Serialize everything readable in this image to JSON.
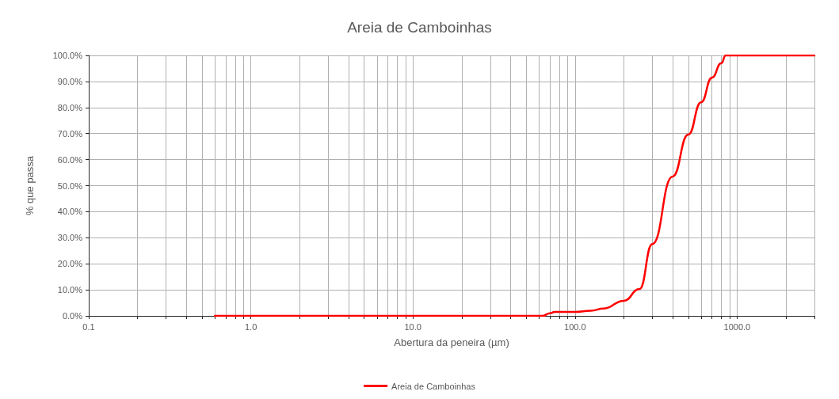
{
  "chart_data": {
    "type": "line",
    "title": "Areia de Camboinhas",
    "xlabel": "Abertura da peneira (µm)",
    "ylabel": "% que passa",
    "log": "x",
    "grid": true,
    "legend": "bottom",
    "marker": "none",
    "line_style": "solid",
    "xlim": [
      0.1,
      3000
    ],
    "ylim": [
      0,
      100
    ],
    "xticks": [
      {
        "value": 0.1,
        "label": "0.1"
      },
      {
        "value": 0.2,
        "label": null
      },
      {
        "value": 0.3,
        "label": null
      },
      {
        "value": 0.4,
        "label": null
      },
      {
        "value": 0.5,
        "label": null
      },
      {
        "value": 0.6,
        "label": null
      },
      {
        "value": 0.7,
        "label": null
      },
      {
        "value": 0.8,
        "label": null
      },
      {
        "value": 0.9,
        "label": null
      },
      {
        "value": 1,
        "label": "1.0"
      },
      {
        "value": 2,
        "label": null
      },
      {
        "value": 3,
        "label": null
      },
      {
        "value": 4,
        "label": null
      },
      {
        "value": 5,
        "label": null
      },
      {
        "value": 6,
        "label": null
      },
      {
        "value": 7,
        "label": null
      },
      {
        "value": 8,
        "label": null
      },
      {
        "value": 9,
        "label": null
      },
      {
        "value": 10,
        "label": "10.0"
      },
      {
        "value": 20,
        "label": null
      },
      {
        "value": 30,
        "label": null
      },
      {
        "value": 40,
        "label": null
      },
      {
        "value": 50,
        "label": null
      },
      {
        "value": 60,
        "label": null
      },
      {
        "value": 70,
        "label": null
      },
      {
        "value": 80,
        "label": null
      },
      {
        "value": 90,
        "label": null
      },
      {
        "value": 100,
        "label": "100.0"
      },
      {
        "value": 200,
        "label": null
      },
      {
        "value": 300,
        "label": null
      },
      {
        "value": 400,
        "label": null
      },
      {
        "value": 500,
        "label": null
      },
      {
        "value": 600,
        "label": null
      },
      {
        "value": 700,
        "label": null
      },
      {
        "value": 800,
        "label": null
      },
      {
        "value": 900,
        "label": null
      },
      {
        "value": 1000,
        "label": "1000.0"
      },
      {
        "value": 2000,
        "label": null
      },
      {
        "value": 3000,
        "label": null
      }
    ],
    "yticks": [
      {
        "value": 0,
        "label": "0.0%"
      },
      {
        "value": 10,
        "label": "10.0%"
      },
      {
        "value": 20,
        "label": "20.0%"
      },
      {
        "value": 30,
        "label": "30.0%"
      },
      {
        "value": 40,
        "label": "40.0%"
      },
      {
        "value": 50,
        "label": "50.0%"
      },
      {
        "value": 60,
        "label": "60.0%"
      },
      {
        "value": 70,
        "label": "70.0%"
      },
      {
        "value": 80,
        "label": "80.0%"
      },
      {
        "value": 90,
        "label": "90.0%"
      },
      {
        "value": 100,
        "label": "100.0%"
      }
    ],
    "series": [
      {
        "name": "Areia de Camboinhas",
        "color": "#ff0000",
        "x": [
          0.6,
          63,
          70,
          75,
          100,
          125,
          150,
          200,
          250,
          300,
          400,
          500,
          600,
          700,
          800,
          850,
          3000
        ],
        "values": [
          0,
          0,
          1,
          1.5,
          1.5,
          2,
          2.8,
          5.8,
          10.3,
          27.6,
          53.5,
          69.6,
          82,
          91.5,
          97,
          100,
          100
        ]
      }
    ]
  }
}
